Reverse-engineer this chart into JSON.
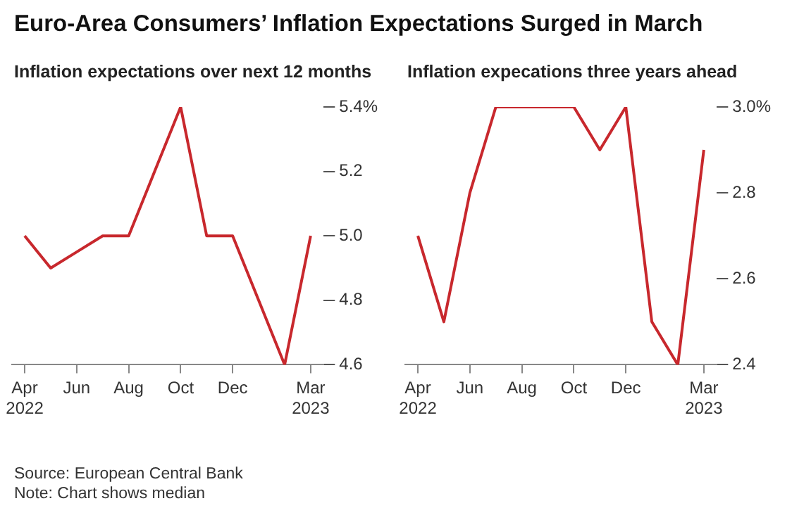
{
  "chart_data": [
    {
      "type": "line",
      "title": "Euro-Area Consumers’ Inflation Expectations Surged in March",
      "subtitle": "Inflation expectations over next 12 months",
      "categories": [
        "Apr 2022",
        null,
        "Jun",
        null,
        "Aug",
        null,
        "Oct",
        null,
        "Dec",
        null,
        null,
        "Mar 2023"
      ],
      "series": [
        {
          "color": "#c8282d",
          "values": [
            5.0,
            4.9,
            4.95,
            5.0,
            5.0,
            5.2,
            5.4,
            5.0,
            5.0,
            4.8,
            4.6,
            5.0
          ]
        }
      ],
      "ylim": [
        4.6,
        5.4
      ],
      "yticks": [
        {
          "value": 4.6,
          "label": "4.6"
        },
        {
          "value": 4.8,
          "label": "4.8"
        },
        {
          "value": 5.0,
          "label": "5.0"
        },
        {
          "value": 5.2,
          "label": "5.2"
        },
        {
          "value": 5.4,
          "label": "5.4%"
        }
      ],
      "grid": false,
      "legend": false,
      "marker": "none",
      "line_style": "solid",
      "annotations": [
        "Source: European Central Bank",
        "Note: Chart shows median"
      ]
    },
    {
      "type": "line",
      "subtitle": "Inflation expecations three years ahead",
      "categories": [
        "Apr 2022",
        null,
        "Jun",
        null,
        "Aug",
        null,
        "Oct",
        null,
        "Dec",
        null,
        null,
        "Mar 2023"
      ],
      "series": [
        {
          "color": "#c8282d",
          "values": [
            2.7,
            2.5,
            2.8,
            3.0,
            3.0,
            3.0,
            3.0,
            2.9,
            3.0,
            2.5,
            2.4,
            2.9
          ]
        }
      ],
      "ylim": [
        2.4,
        3.0
      ],
      "yticks": [
        {
          "value": 2.4,
          "label": "2.4"
        },
        {
          "value": 2.6,
          "label": "2.6"
        },
        {
          "value": 2.8,
          "label": "2.8"
        },
        {
          "value": 3.0,
          "label": "3.0%"
        }
      ],
      "grid": false,
      "legend": false,
      "marker": "none",
      "line_style": "solid"
    }
  ]
}
